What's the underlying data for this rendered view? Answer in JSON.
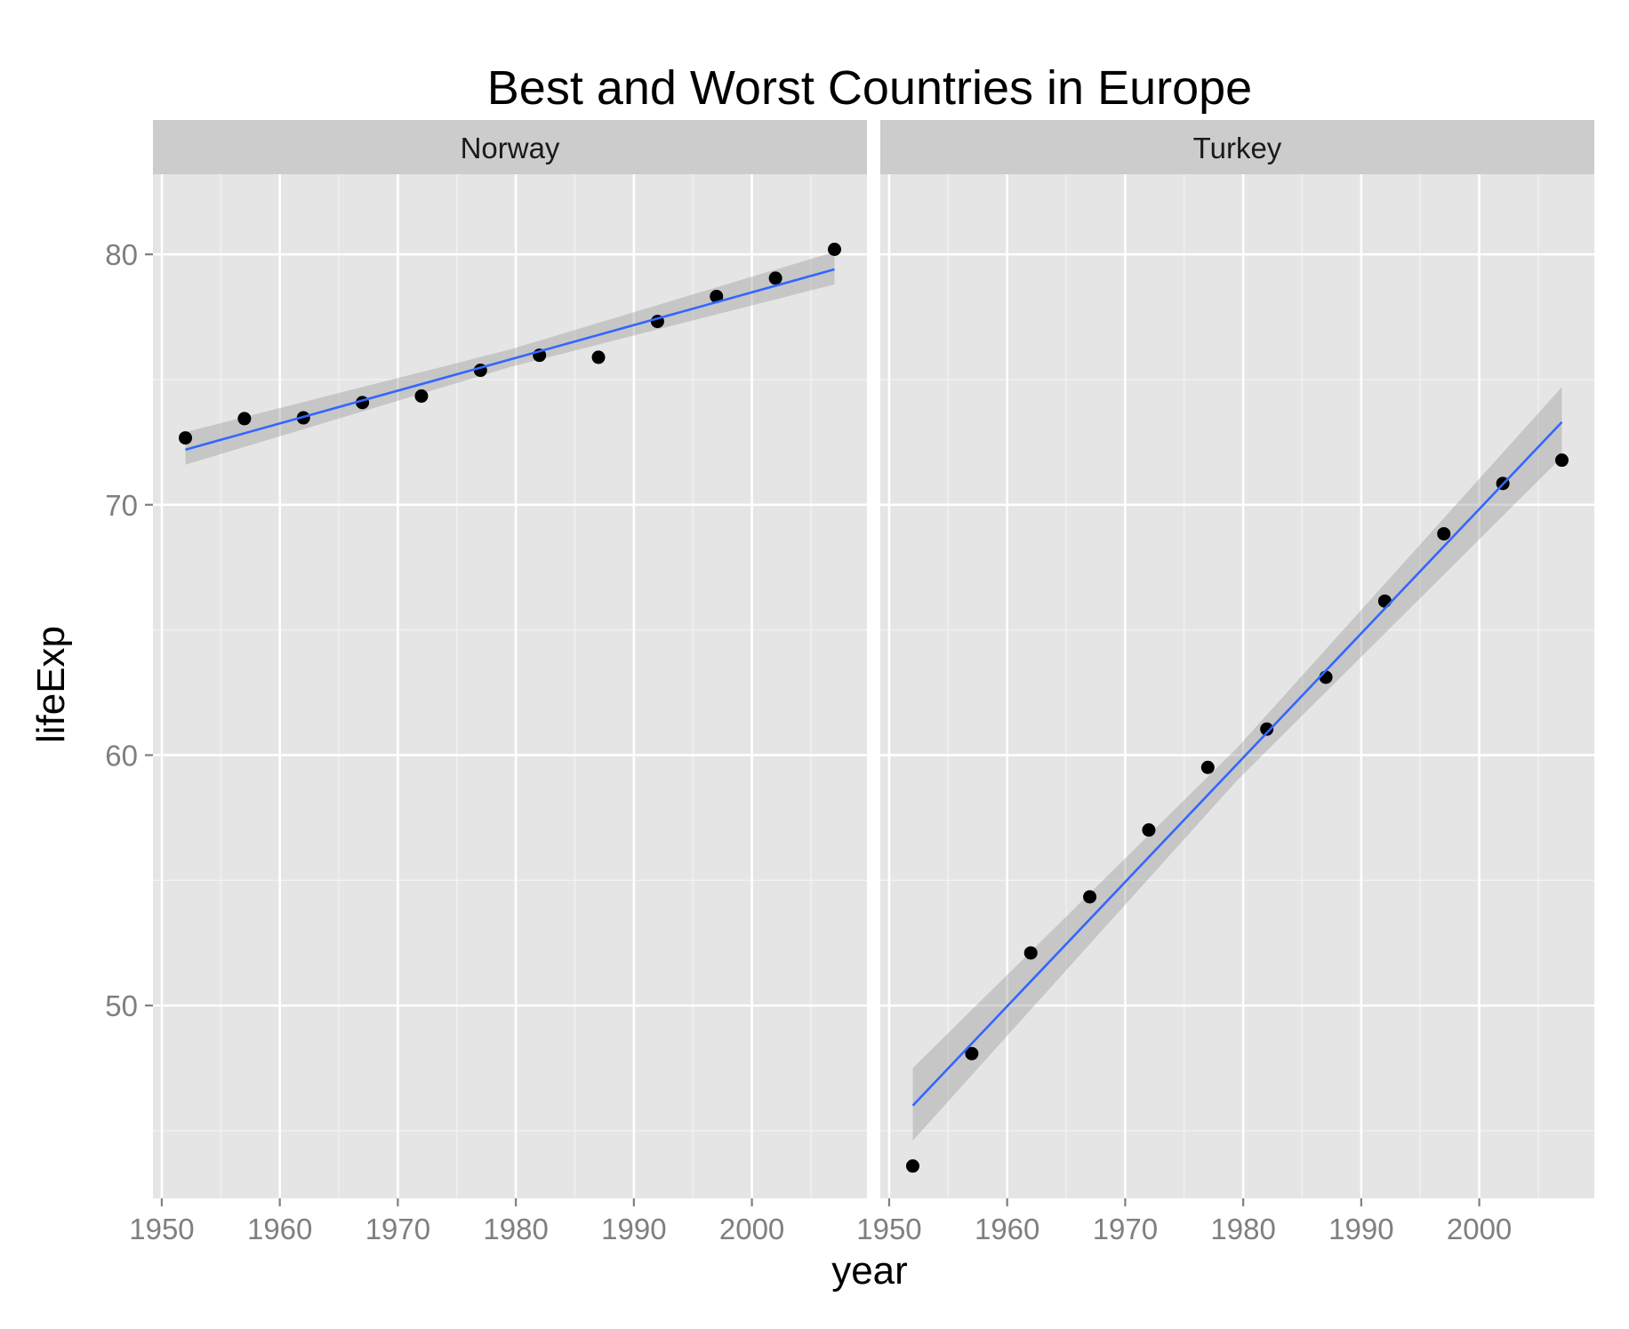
{
  "chart_data": {
    "type": "scatter",
    "title": "Best and Worst Countries in Europe",
    "xlabel": "year",
    "ylabel": "lifeExp",
    "xlim": [
      1949.25,
      2009.75
    ],
    "ylim": [
      42.3,
      83.2
    ],
    "x_ticks": [
      1950,
      1960,
      1970,
      1980,
      1990,
      2000
    ],
    "x_tick_labels": [
      "1950",
      "1960",
      "1970",
      "1980",
      "1990",
      "2000"
    ],
    "y_ticks": [
      50,
      60,
      70,
      80
    ],
    "y_tick_labels": [
      "50",
      "60",
      "70",
      "80"
    ],
    "grid": true,
    "smoothing": "linear fit with confidence band",
    "colors": {
      "panel_background": "#e5e5e5",
      "strip_background": "#cccccc",
      "grid_major": "#ffffff",
      "grid_minor": "#f2f2f2",
      "points": "#000000",
      "fit_line": "#3366ff",
      "confidence_band": "#999999"
    },
    "facets": [
      {
        "strip_label": "Norway",
        "x": [
          1952,
          1957,
          1962,
          1967,
          1972,
          1977,
          1982,
          1987,
          1992,
          1997,
          2002,
          2007
        ],
        "y": [
          72.67,
          73.44,
          73.47,
          74.08,
          74.34,
          75.37,
          75.97,
          75.89,
          77.32,
          78.32,
          79.05,
          80.2
        ],
        "fit": {
          "x_start": 1952,
          "y_start": 72.2,
          "x_end": 2007,
          "y_end": 79.4
        },
        "band": {
          "x_start": 1952,
          "low_start": 71.6,
          "high_start": 72.9,
          "x_mid": 1979.5,
          "low_mid": 75.5,
          "high_mid": 76.2,
          "x_end": 2007,
          "low_end": 78.8,
          "high_end": 80.1
        }
      },
      {
        "strip_label": "Turkey",
        "x": [
          1952,
          1957,
          1962,
          1967,
          1972,
          1977,
          1982,
          1987,
          1992,
          1997,
          2002,
          2007
        ],
        "y": [
          43.59,
          48.08,
          52.1,
          54.34,
          57.01,
          59.51,
          61.04,
          63.11,
          66.15,
          68.84,
          70.85,
          71.78
        ],
        "fit": {
          "x_start": 1952,
          "y_start": 46.0,
          "x_end": 2007,
          "y_end": 73.3
        },
        "band": {
          "x_start": 1952,
          "low_start": 44.6,
          "high_start": 47.5,
          "x_mid": 1979.5,
          "low_mid": 59.0,
          "high_mid": 60.3,
          "x_end": 2007,
          "low_end": 71.9,
          "high_end": 74.7
        }
      }
    ]
  }
}
